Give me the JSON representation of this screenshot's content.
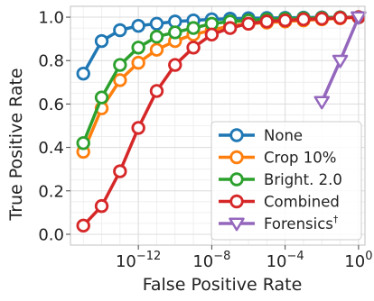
{
  "chart_data": {
    "type": "line",
    "title": "",
    "xlabel": "False Positive Rate",
    "ylabel": "True Positive Rate",
    "xscale": "log",
    "xlim": [
      1e-15,
      1
    ],
    "ylim": [
      0,
      1
    ],
    "grid": true,
    "legend_position": "lower-right",
    "x_ticks": [
      {
        "value": 1e-12,
        "base": "10",
        "exp": "−12"
      },
      {
        "value": 1e-08,
        "base": "10",
        "exp": "−8"
      },
      {
        "value": 0.0001,
        "base": "10",
        "exp": "−4"
      },
      {
        "value": 1,
        "base": "10",
        "exp": "0"
      }
    ],
    "y_ticks": [
      {
        "value": 0.0,
        "label": "0.0"
      },
      {
        "value": 0.2,
        "label": "0.2"
      },
      {
        "value": 0.4,
        "label": "0.4"
      },
      {
        "value": 0.6,
        "label": "0.6"
      },
      {
        "value": 0.8,
        "label": "0.8"
      },
      {
        "value": 1.0,
        "label": "1.0"
      }
    ],
    "series": [
      {
        "name": "None",
        "color": "#1f77b4",
        "marker": "circle",
        "x": [
          1e-15,
          1e-14,
          1e-13,
          1e-12,
          1e-11,
          1e-10,
          1e-09,
          1e-08,
          1e-07,
          1e-06,
          1e-05,
          0.0001,
          0.001,
          0.01,
          0.1,
          1
        ],
        "y": [
          0.74,
          0.89,
          0.94,
          0.96,
          0.97,
          0.98,
          0.985,
          0.99,
          0.993,
          0.995,
          0.996,
          0.997,
          0.998,
          0.999,
          0.999,
          1.0
        ]
      },
      {
        "name": "Crop 10%",
        "color": "#ff7f0e",
        "marker": "circle",
        "x": [
          1e-15,
          1e-14,
          1e-13,
          1e-12,
          1e-11,
          1e-10,
          1e-09,
          1e-08,
          1e-07,
          1e-06,
          1e-05,
          0.0001,
          0.001,
          0.01,
          0.1,
          1
        ],
        "y": [
          0.38,
          0.58,
          0.71,
          0.79,
          0.85,
          0.89,
          0.92,
          0.94,
          0.96,
          0.97,
          0.975,
          0.98,
          0.985,
          0.99,
          0.995,
          1.0
        ]
      },
      {
        "name": "Bright. 2.0",
        "color": "#2ca02c",
        "marker": "circle",
        "x": [
          1e-15,
          1e-14,
          1e-13,
          1e-12,
          1e-11,
          1e-10,
          1e-09,
          1e-08,
          1e-07,
          1e-06,
          1e-05,
          0.0001,
          0.001,
          0.01,
          0.1,
          1
        ],
        "y": [
          0.42,
          0.63,
          0.78,
          0.86,
          0.91,
          0.93,
          0.95,
          0.97,
          0.98,
          0.985,
          0.99,
          0.993,
          0.995,
          0.997,
          0.999,
          1.0
        ]
      },
      {
        "name": "Combined",
        "color": "#d62728",
        "marker": "circle",
        "x": [
          1e-15,
          1e-14,
          1e-13,
          1e-12,
          1e-11,
          1e-10,
          1e-09,
          1e-08,
          1e-07,
          1e-06,
          1e-05,
          0.0001,
          0.001,
          0.01,
          0.1,
          1
        ],
        "y": [
          0.04,
          0.13,
          0.29,
          0.49,
          0.66,
          0.78,
          0.86,
          0.92,
          0.95,
          0.97,
          0.98,
          0.985,
          0.99,
          0.993,
          0.997,
          1.0
        ]
      },
      {
        "name": "Forensics",
        "name_sup": "†",
        "color": "#9467bd",
        "marker": "triangle-down",
        "x": [
          0.01,
          0.1,
          1
        ],
        "y": [
          0.61,
          0.8,
          1.0
        ]
      }
    ]
  }
}
